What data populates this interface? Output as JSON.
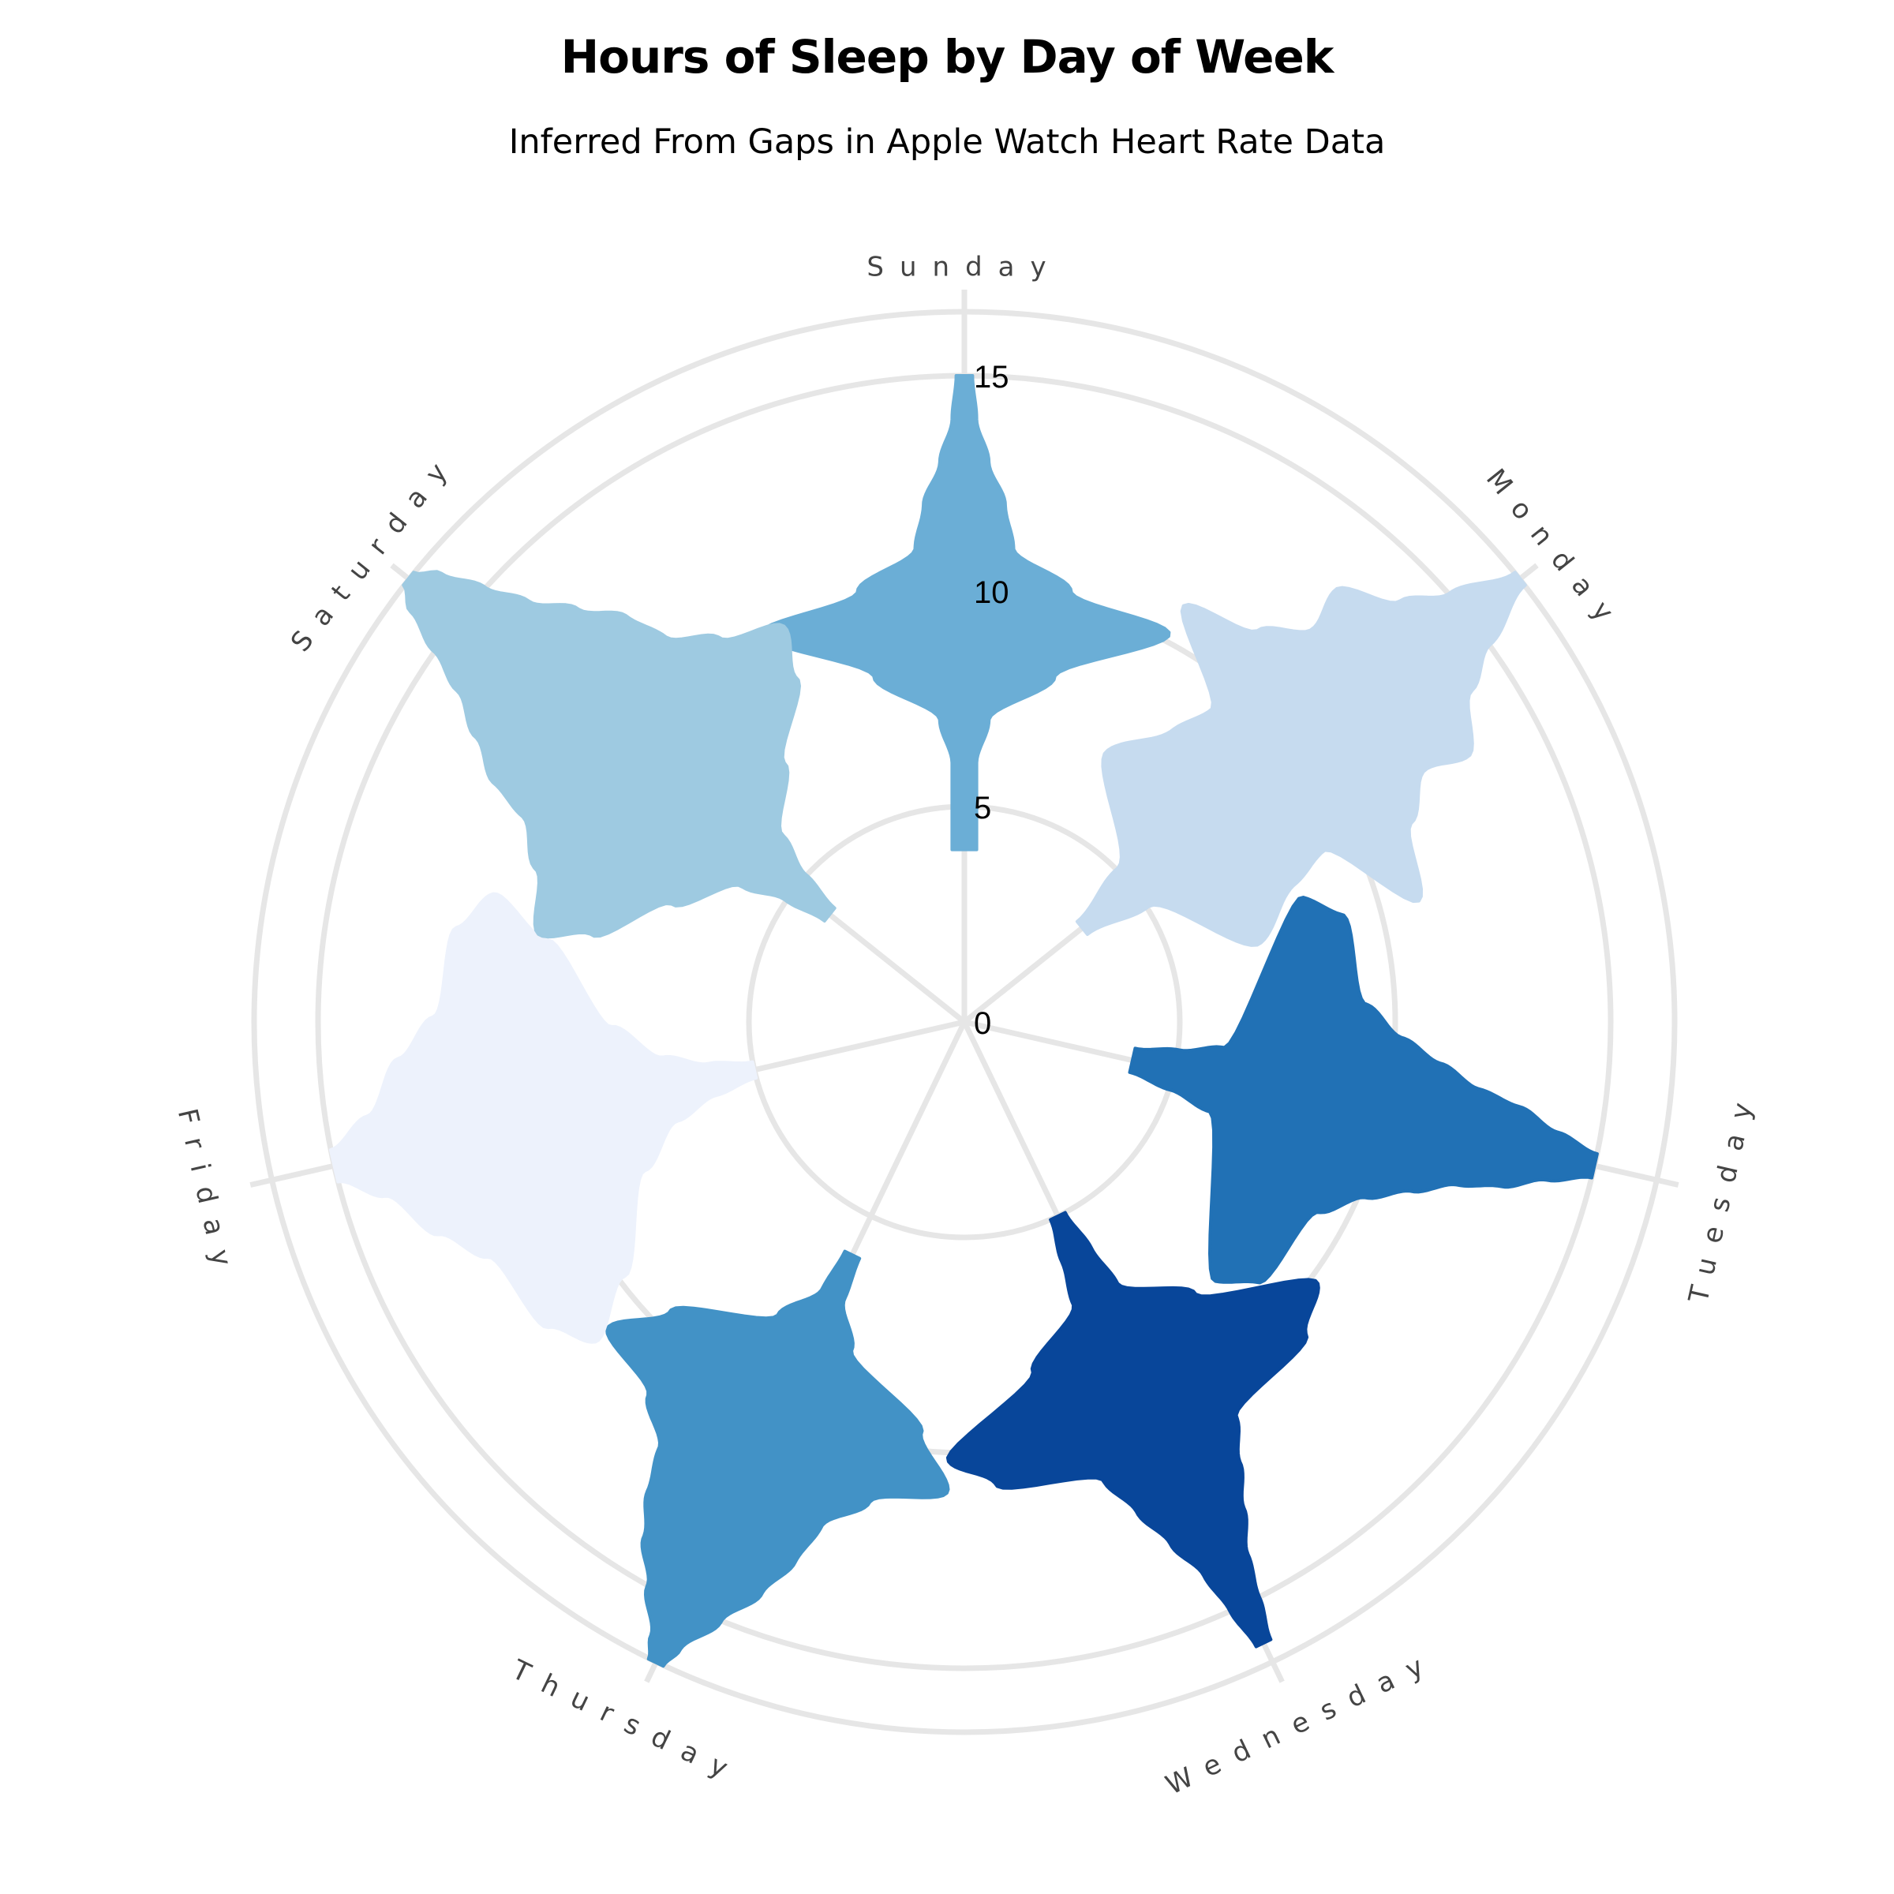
{
  "chart_data": {
    "type": "violin",
    "title": "Hours of Sleep by Day of Week",
    "subtitle": "Inferred From Gaps in Apple Watch Heart Rate Data",
    "radial_axis": {
      "range": [
        0,
        15
      ],
      "tick_labels": [
        "0",
        "5",
        "10",
        "15"
      ]
    },
    "grid": true,
    "categories": [
      "Sunday",
      "Monday",
      "Tuesday",
      "Wednesday",
      "Thursday",
      "Friday",
      "Saturday"
    ],
    "series": [
      {
        "category": "Sunday",
        "color": "#6baed6",
        "min": 4,
        "max": 15,
        "peak": 9,
        "profile": [
          [
            4,
            0.03
          ],
          [
            5,
            0.03
          ],
          [
            6,
            0.03
          ],
          [
            7,
            0.06
          ],
          [
            8,
            0.22
          ],
          [
            9,
            0.5
          ],
          [
            10,
            0.26
          ],
          [
            11,
            0.12
          ],
          [
            12,
            0.1
          ],
          [
            13,
            0.06
          ],
          [
            14,
            0.03
          ],
          [
            15,
            0.02
          ]
        ]
      },
      {
        "category": "Monday",
        "color": "#c6dbef",
        "min": 3.5,
        "max": 16.5,
        "peak": 10,
        "profile": [
          [
            3.5,
            0.02
          ],
          [
            5,
            0.06
          ],
          [
            6.5,
            0.3
          ],
          [
            8,
            0.24
          ],
          [
            9,
            0.22
          ],
          [
            10,
            0.46
          ],
          [
            11,
            0.3
          ],
          [
            12,
            0.22
          ],
          [
            13,
            0.26
          ],
          [
            14,
            0.14
          ],
          [
            15,
            0.08
          ],
          [
            16.5,
            0.02
          ]
        ]
      },
      {
        "category": "Tuesday",
        "color": "#2171b5",
        "min": 4,
        "max": 15,
        "peak": 7,
        "profile": [
          [
            4,
            0.03
          ],
          [
            5,
            0.05
          ],
          [
            6,
            0.08
          ],
          [
            7,
            0.48
          ],
          [
            8,
            0.46
          ],
          [
            9,
            0.26
          ],
          [
            10,
            0.2
          ],
          [
            11,
            0.16
          ],
          [
            12,
            0.12
          ],
          [
            13,
            0.1
          ],
          [
            14,
            0.06
          ],
          [
            15,
            0.03
          ]
        ]
      },
      {
        "category": "Wednesday",
        "color": "#08469a",
        "min": 5,
        "max": 16,
        "peak": 9,
        "profile": [
          [
            5,
            0.02
          ],
          [
            6,
            0.04
          ],
          [
            7,
            0.06
          ],
          [
            8,
            0.22
          ],
          [
            9,
            0.5
          ],
          [
            10,
            0.42
          ],
          [
            11,
            0.18
          ],
          [
            12,
            0.14
          ],
          [
            13,
            0.1
          ],
          [
            14,
            0.06
          ],
          [
            15,
            0.04
          ],
          [
            16,
            0.02
          ]
        ]
      },
      {
        "category": "Thursday",
        "color": "#4292c6",
        "min": 6,
        "max": 16.5,
        "peak": 10,
        "profile": [
          [
            6,
            0.02
          ],
          [
            7,
            0.03
          ],
          [
            8,
            0.1
          ],
          [
            9,
            0.34
          ],
          [
            10,
            0.46
          ],
          [
            11,
            0.3
          ],
          [
            12,
            0.22
          ],
          [
            13,
            0.2
          ],
          [
            14,
            0.16
          ],
          [
            15,
            0.1
          ],
          [
            16,
            0.04
          ],
          [
            16.5,
            0.02
          ]
        ]
      },
      {
        "category": "Friday",
        "color": "#edf2fc",
        "min": 5,
        "max": 15,
        "peak": 10,
        "profile": [
          [
            5,
            0.02
          ],
          [
            6,
            0.04
          ],
          [
            7,
            0.08
          ],
          [
            8,
            0.18
          ],
          [
            9,
            0.42
          ],
          [
            10,
            0.56
          ],
          [
            11,
            0.5
          ],
          [
            12,
            0.3
          ],
          [
            13,
            0.22
          ],
          [
            14,
            0.1
          ],
          [
            15,
            0.04
          ]
        ]
      },
      {
        "category": "Saturday",
        "color": "#9ecae1",
        "min": 4,
        "max": 16.5,
        "peak": 9,
        "profile": [
          [
            4,
            0.02
          ],
          [
            5,
            0.04
          ],
          [
            6,
            0.08
          ],
          [
            7,
            0.22
          ],
          [
            8,
            0.4
          ],
          [
            9,
            0.48
          ],
          [
            10,
            0.36
          ],
          [
            11,
            0.28
          ],
          [
            12,
            0.26
          ],
          [
            13,
            0.2
          ],
          [
            14,
            0.14
          ],
          [
            15,
            0.1
          ],
          [
            16,
            0.06
          ],
          [
            16.5,
            0.02
          ]
        ]
      }
    ]
  }
}
